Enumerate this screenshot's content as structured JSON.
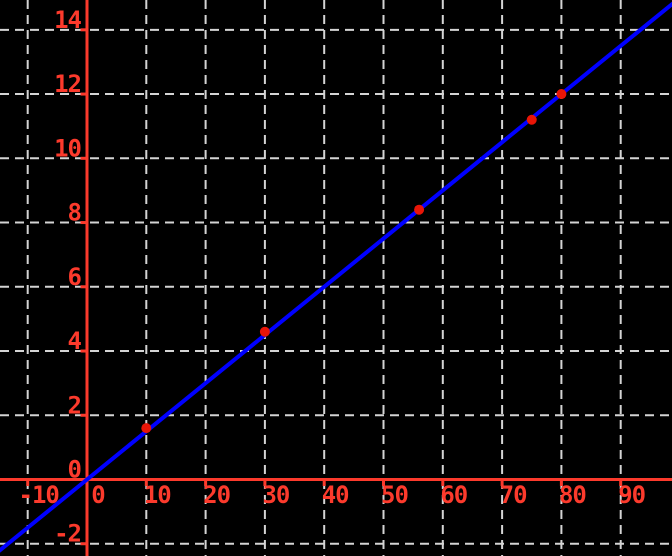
{
  "chart_data": {
    "type": "line",
    "title": "",
    "xlabel": "",
    "ylabel": "",
    "grid": true,
    "legend": false,
    "x_ticks": [
      -10,
      0,
      10,
      20,
      30,
      40,
      50,
      60,
      70,
      80,
      90
    ],
    "y_ticks": [
      -2,
      0,
      2,
      4,
      6,
      8,
      10,
      12,
      14
    ],
    "xlim": [
      -14.7,
      98.7
    ],
    "ylim": [
      -2.4,
      14.9
    ],
    "line": {
      "name": "trend-line",
      "slope": 0.15,
      "intercept": 0,
      "color": "#0000ff"
    },
    "points": {
      "name": "data-points",
      "color": "#e81507",
      "data": [
        [
          10,
          1.6
        ],
        [
          30,
          4.6
        ],
        [
          56,
          8.4
        ],
        [
          75,
          11.2
        ],
        [
          80,
          12
        ]
      ]
    },
    "colors": {
      "background": "#000000",
      "axis": "#fc3a2c",
      "tick_label": "#fc3a2c",
      "grid": "#d4d4d4"
    }
  }
}
